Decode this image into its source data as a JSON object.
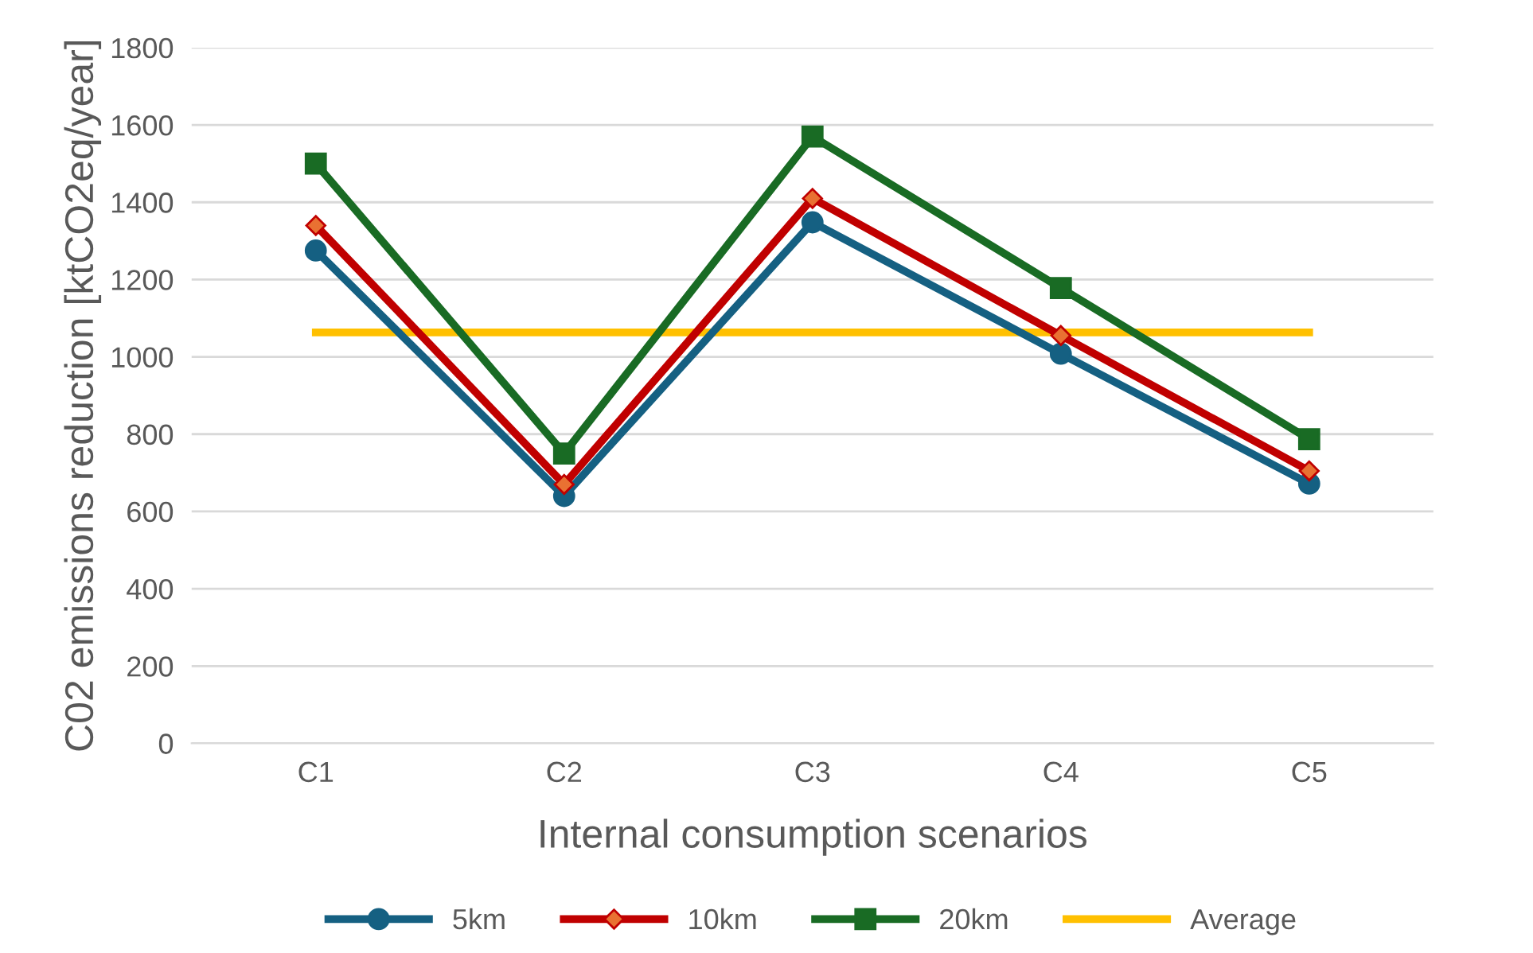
{
  "chart_data": {
    "type": "line",
    "xlabel": "Internal consumption scenarios",
    "ylabel": "C02 emissions reduction [ktCO2eq/year]",
    "categories": [
      "C1",
      "C2",
      "C3",
      "C4",
      "C5"
    ],
    "series": [
      {
        "name": "5km",
        "color": "#156082",
        "marker": "circle",
        "values": [
          1275,
          640,
          1348,
          1008,
          672
        ]
      },
      {
        "name": "10km",
        "color": "#c00000",
        "marker": "diamond",
        "values": [
          1340,
          670,
          1410,
          1055,
          705
        ]
      },
      {
        "name": "20km",
        "color": "#196b24",
        "marker": "square",
        "values": [
          1500,
          750,
          1570,
          1178,
          787
        ]
      },
      {
        "name": "Average",
        "color": "#ffc000",
        "marker": "none",
        "values": [
          1063,
          1063,
          1063,
          1063,
          1063
        ]
      }
    ],
    "ylim": [
      0,
      1800
    ],
    "yticks": [
      0,
      200,
      400,
      600,
      800,
      1000,
      1200,
      1400,
      1600,
      1800
    ],
    "grid": "y",
    "legend": "bottom",
    "line_style": "solid"
  }
}
